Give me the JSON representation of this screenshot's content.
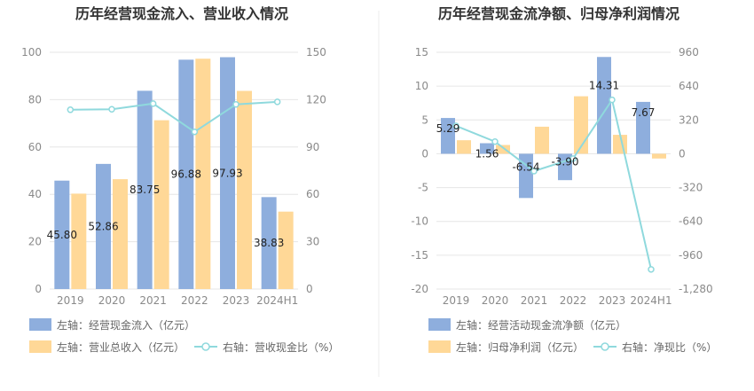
{
  "colors": {
    "bar_blue": "#8eaedd",
    "bar_orange": "#ffd897",
    "line_teal": "#8fd9dd",
    "grid": "#e6e6e6",
    "divider": "#eeeeee"
  },
  "chart_data": [
    {
      "type": "bar",
      "title": "历年经营现金流入、营业收入情况",
      "categories": [
        "2019",
        "2020",
        "2021",
        "2022",
        "2023",
        "2024H1"
      ],
      "left_axis": {
        "ticks": [
          "0",
          "20",
          "40",
          "60",
          "80",
          "100"
        ],
        "ylim": [
          0,
          100
        ]
      },
      "right_axis": {
        "ticks": [
          "0",
          "30",
          "60",
          "90",
          "120",
          "150"
        ],
        "ylim": [
          0,
          150
        ]
      },
      "series": [
        {
          "name": "左轴：经营现金流入（亿元）",
          "axis": "left",
          "kind": "bar",
          "color": "#8eaedd",
          "values": [
            45.8,
            52.86,
            83.75,
            96.88,
            97.93,
            38.83
          ],
          "labels": [
            "45.80",
            "52.86",
            "83.75",
            "96.88",
            "97.93",
            "38.83"
          ]
        },
        {
          "name": "左轴：营业总收入（亿元）",
          "axis": "left",
          "kind": "bar",
          "color": "#ffd897",
          "values": [
            40.3,
            46.4,
            71.3,
            97.3,
            83.7,
            32.7
          ]
        },
        {
          "name": "右轴：营收现金比（%）",
          "axis": "right",
          "kind": "line",
          "color": "#8fd9dd",
          "values": [
            113.6,
            113.9,
            117.5,
            99.6,
            117.0,
            118.6
          ]
        }
      ],
      "grid": true,
      "legend": "bottom"
    },
    {
      "type": "bar",
      "title": "历年经营现金流净额、归母净利润情况",
      "categories": [
        "2019",
        "2020",
        "2021",
        "2022",
        "2023",
        "2024H1"
      ],
      "left_axis": {
        "ticks": [
          "-20",
          "-15",
          "-10",
          "-5",
          "0",
          "5",
          "10",
          "15"
        ],
        "ylim": [
          -20,
          15
        ]
      },
      "right_axis": {
        "ticks": [
          "-1,280",
          "-960",
          "-640",
          "-320",
          "0",
          "320",
          "640",
          "960"
        ],
        "ylim": [
          -1280,
          960
        ]
      },
      "series": [
        {
          "name": "左轴：经营活动现金流净额（亿元）",
          "axis": "left",
          "kind": "bar",
          "color": "#8eaedd",
          "values": [
            5.29,
            1.56,
            -6.54,
            -3.9,
            14.31,
            7.67
          ],
          "labels": [
            "5.29",
            "1.56",
            "-6.54",
            "-3.90",
            "14.31",
            "7.67"
          ]
        },
        {
          "name": "左轴：归母净利润（亿元）",
          "axis": "left",
          "kind": "bar",
          "color": "#ffd897",
          "values": [
            2.0,
            1.3,
            4.0,
            8.5,
            2.8,
            -0.7
          ]
        },
        {
          "name": "右轴：净现比（%）",
          "axis": "right",
          "kind": "line",
          "color": "#8fd9dd",
          "values": [
            264,
            115,
            -164,
            -46,
            510,
            -1094
          ]
        }
      ],
      "grid": true,
      "legend": "bottom"
    }
  ]
}
